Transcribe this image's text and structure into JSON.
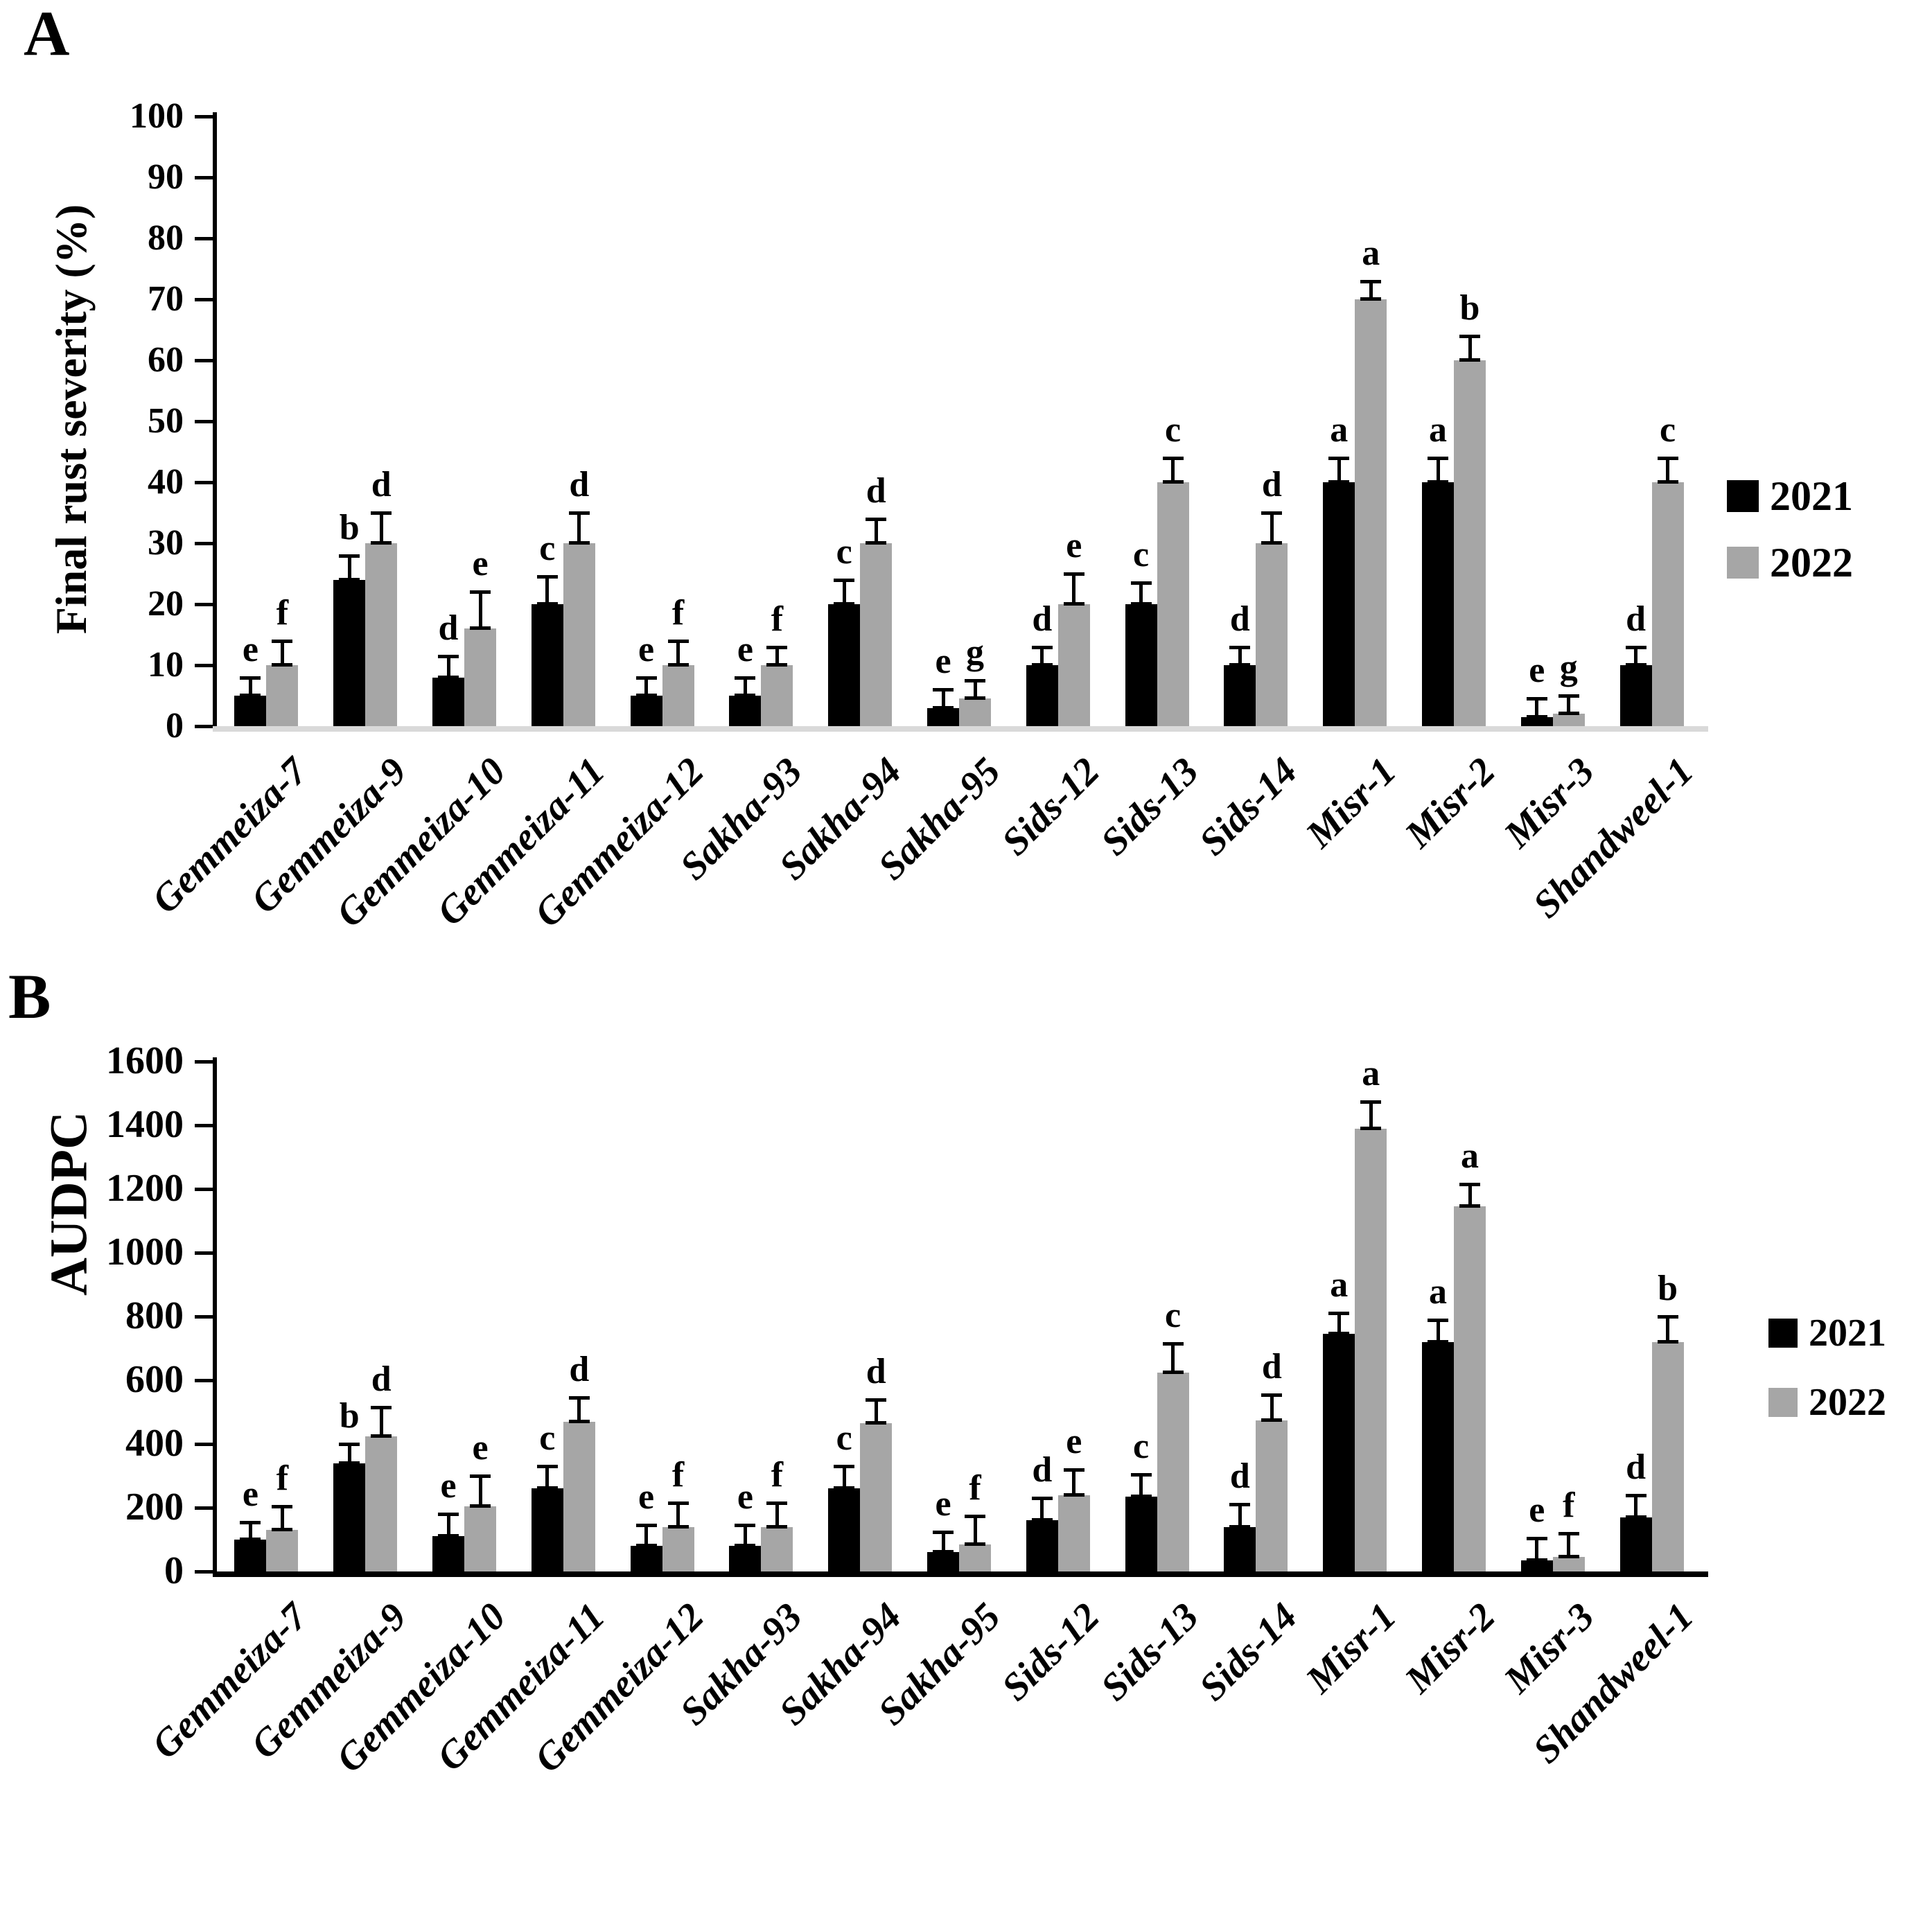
{
  "figure": {
    "panel_a_label": "A",
    "panel_b_label": "B",
    "background": "#ffffff",
    "bar_black": "#000000",
    "bar_gray": "#a6a6a6",
    "axis_a_baseline_color": "#d9d9d9",
    "axis_b_baseline_color": "#000000"
  },
  "legend": {
    "position": "right",
    "items": [
      {
        "label": "2021",
        "color": "#000000"
      },
      {
        "label": "2022",
        "color": "#a6a6a6"
      }
    ]
  },
  "chart_data": [
    {
      "type": "bar",
      "panel": "A",
      "title": "",
      "xlabel": "",
      "ylabel": "Final rust severity (%)",
      "ylim": [
        0,
        100
      ],
      "ytick_step": 10,
      "yticks": [
        0,
        10,
        20,
        30,
        40,
        50,
        60,
        70,
        80,
        90,
        100
      ],
      "grid": false,
      "legend_position": "right",
      "error_bars": true,
      "categories": [
        "Gemmeiza-7",
        "Gemmeiza-9",
        "Gemmeiza-10",
        "Gemmeiza-11",
        "Gemmeiza-12",
        "Sakha-93",
        "Sakha-94",
        "Sakha-95",
        "Sids-12",
        "Sids-13",
        "Sids-14",
        "Misr-1",
        "Misr-2",
        "Misr-3",
        "Shandweel-1"
      ],
      "series": [
        {
          "name": "2021",
          "color": "#000000",
          "values": [
            5,
            24,
            8,
            20,
            5,
            5,
            20,
            3,
            10,
            20,
            10,
            40,
            40,
            1.5,
            10
          ],
          "errors": [
            3,
            4,
            3.5,
            4.5,
            3,
            3,
            4,
            3,
            3,
            3.5,
            3,
            4,
            4,
            3,
            3
          ],
          "letters": [
            "e",
            "b",
            "d",
            "c",
            "e",
            "e",
            "c",
            "e",
            "d",
            "c",
            "d",
            "a",
            "a",
            "e",
            "d"
          ]
        },
        {
          "name": "2022",
          "color": "#a6a6a6",
          "values": [
            10,
            30,
            16,
            30,
            10,
            10,
            30,
            4.5,
            20,
            40,
            30,
            70,
            60,
            2,
            40
          ],
          "errors": [
            4,
            5,
            6,
            5,
            4,
            3,
            4,
            3,
            5,
            4,
            5,
            3,
            4,
            3,
            4
          ],
          "letters": [
            "f",
            "d",
            "e",
            "d",
            "f",
            "f",
            "d",
            "g",
            "e",
            "c",
            "d",
            "a",
            "b",
            "g",
            "c"
          ]
        }
      ]
    },
    {
      "type": "bar",
      "panel": "B",
      "title": "",
      "xlabel": "",
      "ylabel": "AUDPC",
      "ylim": [
        0,
        1600
      ],
      "ytick_step": 200,
      "yticks": [
        0,
        200,
        400,
        600,
        800,
        1000,
        1200,
        1400,
        1600
      ],
      "grid": false,
      "legend_position": "right",
      "error_bars": true,
      "categories": [
        "Gemmeiza-7",
        "Gemmeiza-9",
        "Gemmeiza-10",
        "Gemmeiza-11",
        "Gemmeiza-12",
        "Sakha-93",
        "Sakha-94",
        "Sakha-95",
        "Sids-12",
        "Sids-13",
        "Sids-14",
        "Misr-1",
        "Misr-2",
        "Misr-3",
        "Shandweel-1"
      ],
      "series": [
        {
          "name": "2021",
          "color": "#000000",
          "values": [
            100,
            340,
            110,
            260,
            80,
            80,
            260,
            60,
            160,
            235,
            140,
            745,
            720,
            35,
            170
          ],
          "errors": [
            55,
            60,
            70,
            70,
            65,
            65,
            70,
            65,
            70,
            70,
            70,
            65,
            70,
            70,
            70
          ],
          "letters": [
            "e",
            "b",
            "e",
            "c",
            "e",
            "e",
            "c",
            "e",
            "d",
            "c",
            "d",
            "a",
            "a",
            "e",
            "d"
          ]
        },
        {
          "name": "2022",
          "color": "#a6a6a6",
          "values": [
            130,
            425,
            205,
            470,
            140,
            140,
            465,
            85,
            240,
            625,
            475,
            1390,
            1145,
            45,
            720
          ],
          "errors": [
            75,
            90,
            95,
            75,
            75,
            75,
            75,
            90,
            80,
            90,
            80,
            85,
            70,
            75,
            80
          ],
          "letters": [
            "f",
            "d",
            "e",
            "d",
            "f",
            "f",
            "d",
            "f",
            "e",
            "c",
            "d",
            "a",
            "a",
            "f",
            "b"
          ]
        }
      ]
    }
  ]
}
